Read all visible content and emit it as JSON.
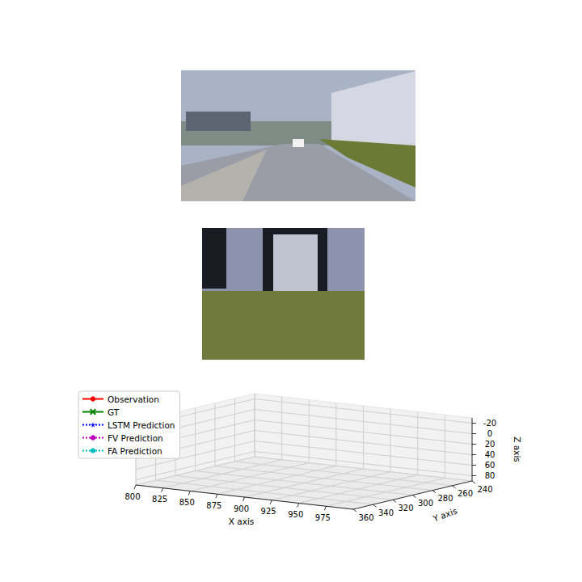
{
  "chart_data": {
    "type": "line3d",
    "series": [
      {
        "name": "Observation",
        "color": "#ff0000",
        "marker": "circle",
        "line_style": "solid",
        "values": []
      },
      {
        "name": "GT",
        "color": "#008000",
        "marker": "x",
        "line_style": "solid",
        "values": []
      },
      {
        "name": "LSTM Prediction",
        "color": "#0000ff",
        "marker": "star",
        "line_style": "dotted",
        "values": []
      },
      {
        "name": "FV Prediction",
        "color": "#bf00bf",
        "marker": "circle",
        "line_style": "dotted",
        "values": []
      },
      {
        "name": "FA Prediction",
        "color": "#00bfbf",
        "marker": "none",
        "line_style": "dotted",
        "values": []
      }
    ],
    "x_label": "X axis",
    "y_label": "Y axis",
    "z_label": "Z axis",
    "xlim": [
      800,
      1000
    ],
    "xticks": [
      800,
      825,
      850,
      875,
      900,
      925,
      950,
      975
    ],
    "ylim": [
      240,
      360
    ],
    "yticks": [
      240,
      260,
      280,
      300,
      320,
      340,
      360
    ],
    "zlim": [
      -30,
      90
    ],
    "zticks": [
      -20,
      0,
      20,
      40,
      60,
      80
    ],
    "grid": true,
    "legend": "upper left"
  }
}
